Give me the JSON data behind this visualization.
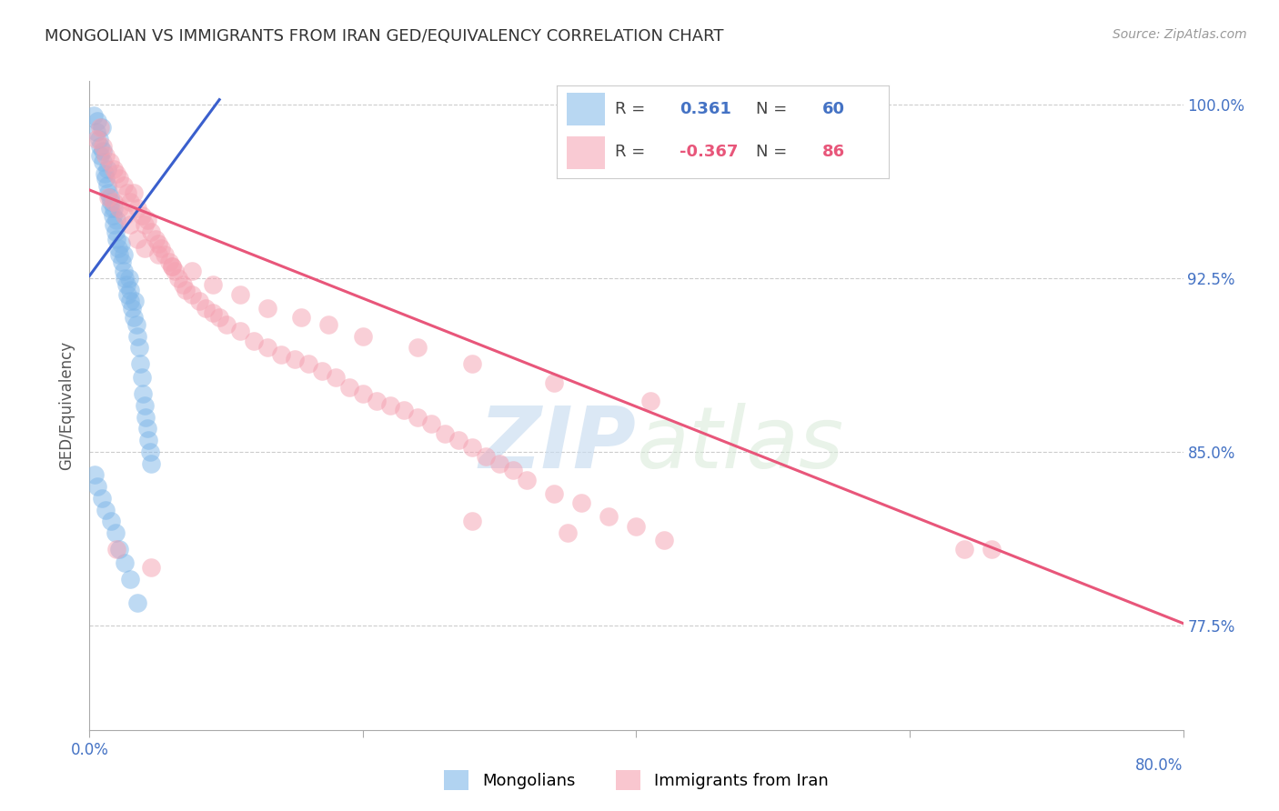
{
  "title": "MONGOLIAN VS IMMIGRANTS FROM IRAN GED/EQUIVALENCY CORRELATION CHART",
  "source": "Source: ZipAtlas.com",
  "ylabel": "GED/Equivalency",
  "xmin": 0.0,
  "xmax": 0.8,
  "ymin": 0.73,
  "ymax": 1.01,
  "yticks": [
    1.0,
    0.925,
    0.85,
    0.775
  ],
  "ytick_labels": [
    "100.0%",
    "92.5%",
    "85.0%",
    "77.5%"
  ],
  "xticks": [
    0.0,
    0.2,
    0.4,
    0.6,
    0.8
  ],
  "blue_color": "#7EB6E8",
  "pink_color": "#F5A0B0",
  "blue_line_color": "#3A5FCD",
  "pink_line_color": "#E8567A",
  "watermark_zip": "ZIP",
  "watermark_atlas": "atlas",
  "background_color": "#FFFFFF",
  "blue_r": "0.361",
  "blue_n": "60",
  "pink_r": "-0.367",
  "pink_n": "86",
  "legend_label_blue": "Mongolians",
  "legend_label_pink": "Immigrants from Iran",
  "blue_scatter_x": [
    0.003,
    0.005,
    0.006,
    0.007,
    0.008,
    0.008,
    0.009,
    0.01,
    0.01,
    0.011,
    0.012,
    0.013,
    0.013,
    0.014,
    0.015,
    0.015,
    0.016,
    0.017,
    0.018,
    0.018,
    0.019,
    0.02,
    0.02,
    0.021,
    0.022,
    0.023,
    0.024,
    0.025,
    0.025,
    0.026,
    0.027,
    0.028,
    0.029,
    0.03,
    0.03,
    0.031,
    0.032,
    0.033,
    0.034,
    0.035,
    0.036,
    0.037,
    0.038,
    0.039,
    0.04,
    0.041,
    0.042,
    0.043,
    0.044,
    0.045,
    0.004,
    0.006,
    0.009,
    0.012,
    0.016,
    0.019,
    0.022,
    0.026,
    0.03,
    0.035
  ],
  "blue_scatter_y": [
    0.995,
    0.988,
    0.993,
    0.985,
    0.982,
    0.978,
    0.99,
    0.975,
    0.98,
    0.97,
    0.968,
    0.972,
    0.965,
    0.962,
    0.96,
    0.955,
    0.958,
    0.952,
    0.948,
    0.955,
    0.945,
    0.942,
    0.95,
    0.938,
    0.935,
    0.94,
    0.932,
    0.928,
    0.935,
    0.925,
    0.922,
    0.918,
    0.925,
    0.915,
    0.92,
    0.912,
    0.908,
    0.915,
    0.905,
    0.9,
    0.895,
    0.888,
    0.882,
    0.875,
    0.87,
    0.865,
    0.86,
    0.855,
    0.85,
    0.845,
    0.84,
    0.835,
    0.83,
    0.825,
    0.82,
    0.815,
    0.808,
    0.802,
    0.795,
    0.785
  ],
  "pink_scatter_x": [
    0.005,
    0.008,
    0.01,
    0.012,
    0.015,
    0.018,
    0.02,
    0.022,
    0.025,
    0.028,
    0.03,
    0.032,
    0.035,
    0.038,
    0.04,
    0.042,
    0.045,
    0.048,
    0.05,
    0.052,
    0.055,
    0.058,
    0.06,
    0.062,
    0.065,
    0.068,
    0.07,
    0.075,
    0.08,
    0.085,
    0.09,
    0.095,
    0.1,
    0.11,
    0.12,
    0.13,
    0.14,
    0.15,
    0.16,
    0.17,
    0.18,
    0.19,
    0.2,
    0.21,
    0.22,
    0.23,
    0.24,
    0.25,
    0.26,
    0.27,
    0.28,
    0.29,
    0.3,
    0.31,
    0.32,
    0.34,
    0.36,
    0.38,
    0.4,
    0.42,
    0.014,
    0.018,
    0.022,
    0.026,
    0.03,
    0.035,
    0.04,
    0.05,
    0.06,
    0.075,
    0.09,
    0.11,
    0.13,
    0.155,
    0.175,
    0.2,
    0.24,
    0.28,
    0.34,
    0.41,
    0.02,
    0.045,
    0.28,
    0.35,
    0.64,
    0.66
  ],
  "pink_scatter_y": [
    0.985,
    0.99,
    0.982,
    0.978,
    0.975,
    0.972,
    0.97,
    0.968,
    0.965,
    0.962,
    0.958,
    0.962,
    0.955,
    0.952,
    0.948,
    0.95,
    0.945,
    0.942,
    0.94,
    0.938,
    0.935,
    0.932,
    0.93,
    0.928,
    0.925,
    0.922,
    0.92,
    0.918,
    0.915,
    0.912,
    0.91,
    0.908,
    0.905,
    0.902,
    0.898,
    0.895,
    0.892,
    0.89,
    0.888,
    0.885,
    0.882,
    0.878,
    0.875,
    0.872,
    0.87,
    0.868,
    0.865,
    0.862,
    0.858,
    0.855,
    0.852,
    0.848,
    0.845,
    0.842,
    0.838,
    0.832,
    0.828,
    0.822,
    0.818,
    0.812,
    0.96,
    0.958,
    0.955,
    0.952,
    0.948,
    0.942,
    0.938,
    0.935,
    0.93,
    0.928,
    0.922,
    0.918,
    0.912,
    0.908,
    0.905,
    0.9,
    0.895,
    0.888,
    0.88,
    0.872,
    0.808,
    0.8,
    0.82,
    0.815,
    0.808,
    0.808
  ],
  "blue_line_x": [
    0.0,
    0.095
  ],
  "blue_line_y": [
    0.926,
    1.002
  ],
  "pink_line_x": [
    0.0,
    0.8
  ],
  "pink_line_y": [
    0.963,
    0.776
  ]
}
